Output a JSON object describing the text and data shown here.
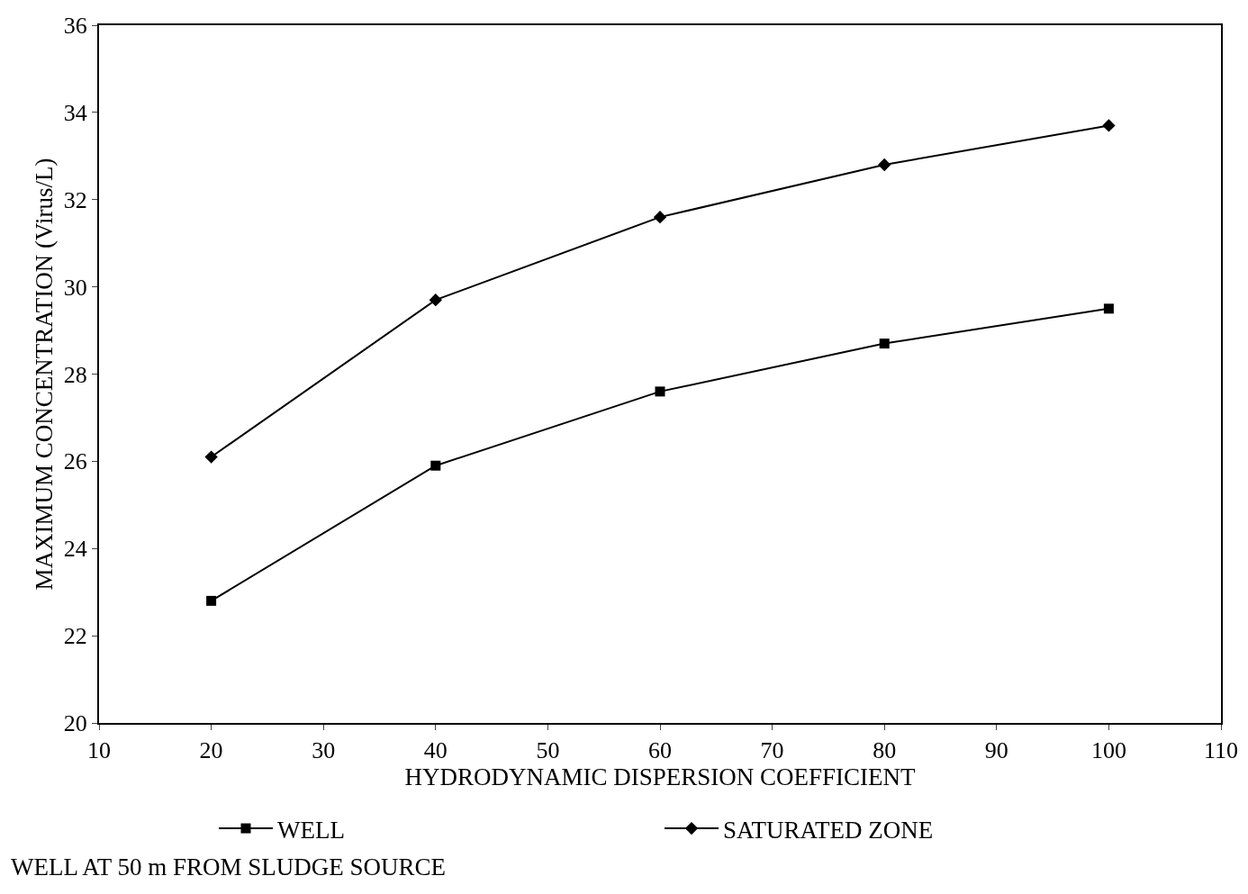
{
  "chart_data": {
    "type": "line",
    "xlabel": "HYDRODYNAMIC DISPERSION COEFFICIENT",
    "ylabel": "MAXIMUM CONCENTRATION (Virus/L)",
    "x": [
      20,
      40,
      60,
      80,
      100
    ],
    "series": [
      {
        "name": "WELL",
        "color": "#000000",
        "marker": "square",
        "values": [
          22.8,
          25.9,
          27.6,
          28.7,
          29.5
        ]
      },
      {
        "name": "SATURATED ZONE",
        "color": "#000000",
        "marker": "diamond",
        "values": [
          26.1,
          29.7,
          31.6,
          32.8,
          33.7
        ]
      }
    ],
    "xlim": [
      10,
      110
    ],
    "xticks": [
      10,
      20,
      30,
      40,
      50,
      60,
      70,
      80,
      90,
      100,
      110
    ],
    "ylim": [
      20,
      36
    ],
    "yticks": [
      20,
      22,
      24,
      26,
      28,
      30,
      32,
      34,
      36
    ],
    "grid": false,
    "legend": "bottom",
    "line_style": "solid",
    "annotations": [
      "WELL AT 50 m FROM SLUDGE SOURCE"
    ]
  }
}
